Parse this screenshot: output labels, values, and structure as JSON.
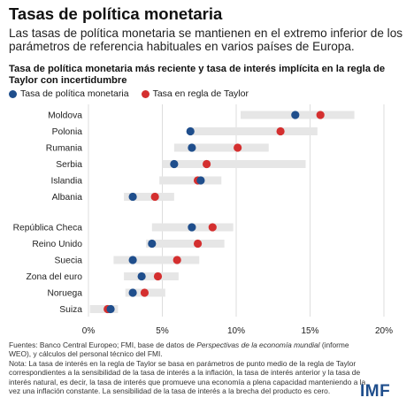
{
  "header": {
    "title": "Tasas de política monetaria",
    "subtitle": "Las tasas de política monetaria se mantienen en el extremo inferior de los parámetros de referencia habituales en varios países de Europa."
  },
  "chart_data": {
    "type": "scatter",
    "title": "Tasa de política monetaria más reciente y tasa de interés implícita en la regla de Taylor con incertidumbre",
    "xlabel": "",
    "ylabel": "",
    "xlim": [
      0,
      20
    ],
    "x_ticks": [
      "0%",
      "5%",
      "10%",
      "15%",
      "20%"
    ],
    "legend": {
      "placement": "top-left"
    },
    "grid": true,
    "colors": {
      "policy": "#1f4e8c",
      "taylor": "#d42f2f",
      "range": "#e6e6e6",
      "grid": "#dddddd"
    },
    "categories": [
      "Moldova",
      "Polonia",
      "Rumania",
      "Serbia",
      "Islandia",
      "Albania",
      "República Checa",
      "Reino Unido",
      "Suecia",
      "Zona del euro",
      "Noruega",
      "Suiza"
    ],
    "series": [
      {
        "name": "Tasa de política monetaria",
        "values": [
          14.0,
          6.9,
          7.0,
          5.8,
          7.6,
          3.0,
          7.0,
          4.3,
          3.0,
          3.6,
          3.0,
          1.5
        ]
      },
      {
        "name": "Tasa en regla de Taylor",
        "values": [
          15.7,
          13.0,
          10.1,
          8.0,
          7.4,
          4.5,
          8.4,
          7.4,
          6.0,
          4.7,
          3.8,
          1.3
        ]
      }
    ],
    "range_low": [
      10.3,
      6.8,
      5.8,
      5.0,
      4.8,
      2.4,
      4.3,
      3.9,
      1.7,
      2.4,
      2.5,
      0.1
    ],
    "range_high": [
      18.0,
      15.5,
      12.2,
      14.7,
      9.0,
      5.8,
      9.8,
      9.2,
      7.5,
      6.1,
      5.2,
      2.0
    ]
  },
  "footer": {
    "sources_prefix": "Fuentes: Banco Central Europeo; FMI, base de datos de ",
    "sources_italic": "Perspectivas de la economía mundial",
    "sources_suffix": " (informe WEO), y cálculos del personal técnico del FMI.",
    "note": "Nota: La tasa de interés en la regla de Taylor se basa en parámetros de punto medio de la regla de Taylor correspondientes a la sensibilidad de la tasa de interés a la inflación, la tasa de interés anterior y la tasa de interés natural, es decir, la tasa de interés que promueve una economía a plena capacidad manteniendo a la vez una inflación constante. La sensibilidad de la tasa de interés a la brecha del producto es cero."
  },
  "logo": {
    "text": "IMF"
  }
}
